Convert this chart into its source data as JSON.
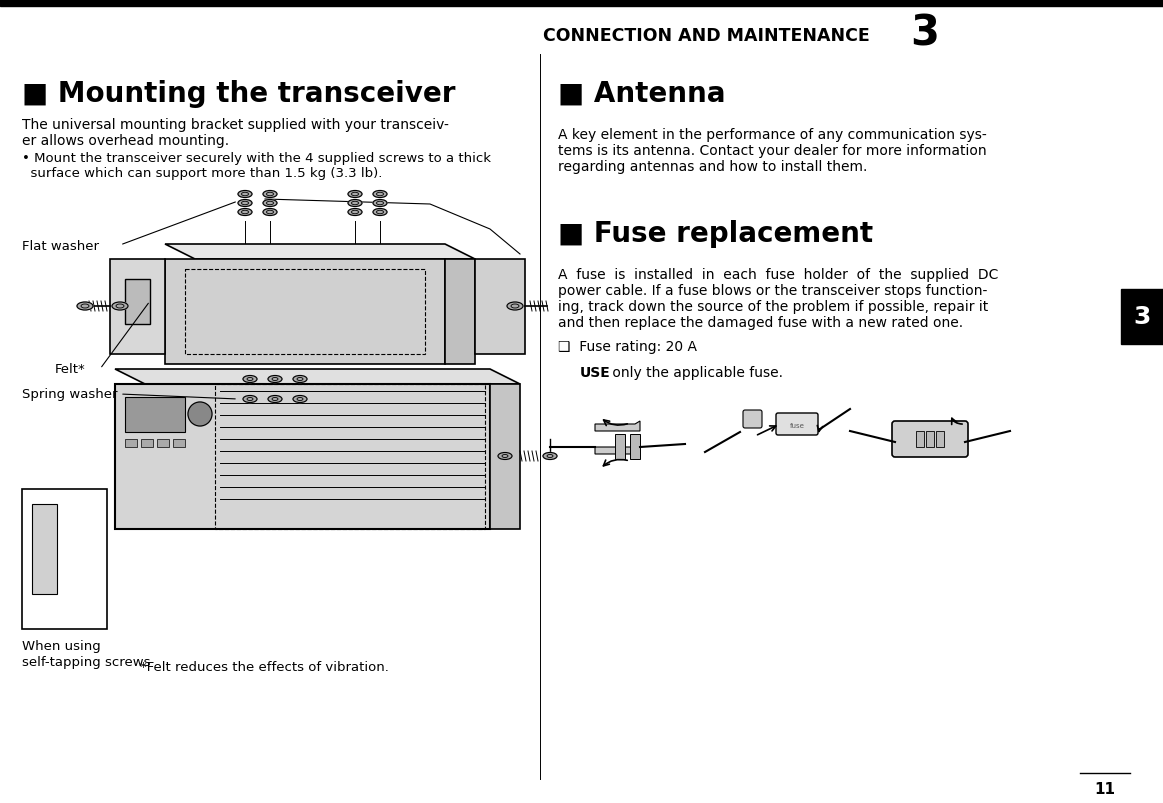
{
  "page_width": 11.63,
  "page_height": 8.04,
  "dpi": 100,
  "bg": "#ffffff",
  "top_bar_color": "#000000",
  "header_text": "CONNECTION AND MAINTENANCE",
  "header_number": "3",
  "tab_label": "3",
  "tab_color": "#000000",
  "tab_text_color": "#ffffff",
  "page_number": "11",
  "left": {
    "title": "■ Mounting the transceiver",
    "body1_lines": [
      "The universal mounting bracket supplied with your transceiv-",
      "er allows overhead mounting."
    ],
    "bullet_lines": [
      "• Mount the transceiver securely with the 4 supplied screws to a thick",
      "  surface which can support more than 1.5 kg (3.3 lb)."
    ],
    "label_flat_washer": "Flat washer",
    "label_felt": "Felt*",
    "label_spring_washer": "Spring washer",
    "label_when_using": [
      "When using",
      "self-tapping screws"
    ],
    "label_felt_note": "*Felt reduces the effects of vibration."
  },
  "right": {
    "antenna_title": "■ Antenna",
    "antenna_body_lines": [
      "A key element in the performance of any communication sys-",
      "tems is its antenna. Contact your dealer for more information",
      "regarding antennas and how to install them."
    ],
    "fuse_title": "■ Fuse replacement",
    "fuse_body_lines": [
      "A  fuse  is  installed  in  each  fuse  holder  of  the  supplied  DC",
      "power cable. If a fuse blows or the transceiver stops function-",
      "ing, track down the source of the problem if possible, repair it",
      "and then replace the damaged fuse with a new rated one."
    ],
    "fuse_bullet1": "❑  Fuse rating: 20 A",
    "fuse_bullet2_bold": "USE",
    "fuse_bullet2_rest": " only the applicable fuse."
  }
}
